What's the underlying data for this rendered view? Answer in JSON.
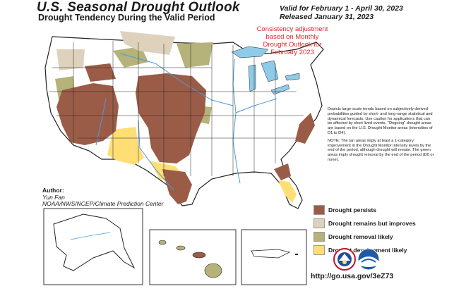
{
  "header": {
    "title": "U.S. Seasonal Drought Outlook",
    "subtitle": "Drought Tendency During the Valid Period",
    "valid_line": "Valid for February 1 - April 30, 2023",
    "released_line": "Released January 31, 2023"
  },
  "annotation": {
    "line1": "Consistency adjustment",
    "line2": "based on Monthly",
    "line3": "Drought Outlook for",
    "line4": "February 2023"
  },
  "author": {
    "label": "Author:",
    "name": "Yun Fan",
    "org": "NOAA/NWS/NCEP/Climate Prediction Center"
  },
  "notes": {
    "paragraph1": "Depicts large-scale trends based on subjectively derived probabilities guided by short- and long-range statistical and dynamical forecasts. Use caution for applications that can be affected by short lived events. \"Ongoing\" drought areas are based on the U.S. Drought Monitor areas (intensities of D1 to D4).",
    "paragraph2": "NOTE: The tan areas imply at least a 1-category improvement in the Drought Monitor intensity levels by the end of the period, although drought will remain. The green areas imply drought removal by the end of the period (D0 or none)."
  },
  "legend": [
    {
      "label": "Drought persists",
      "color": "#9b5c47"
    },
    {
      "label": "Drought remains but improves",
      "color": "#ded2bd"
    },
    {
      "label": "Drought removal likely",
      "color": "#b5b27a"
    },
    {
      "label": "Drought development likely",
      "color": "#ffde75"
    }
  ],
  "url": "http://go.usa.gov/3eZ73",
  "colors": {
    "persists": "#9b5c47",
    "improves": "#ded2bd",
    "removal": "#b5b27a",
    "development": "#ffde75",
    "water": "#8ecbe8",
    "river": "#4d9ad6",
    "boundary": "#222222"
  },
  "icons": [
    "noaa-logo",
    "nws-logo"
  ]
}
